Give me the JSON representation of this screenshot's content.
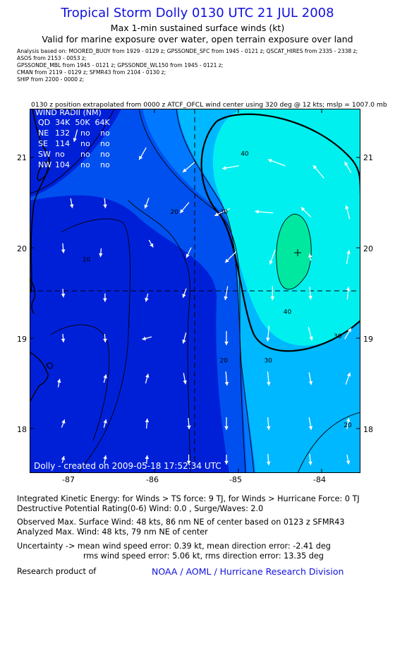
{
  "header": {
    "title": "Tropical Storm Dolly 0130 UTC 21 JUL 2008",
    "subtitle1": "Max 1-min sustained surface winds (kt)",
    "subtitle2": "Valid for marine exposure over water, open terrain exposure over land"
  },
  "analysis_lines": [
    "Analysis based on:  MOORED_BUOY from 1929 - 0129 z;  GPSSONDE_SFC from 1945 - 0121 z;  QSCAT_HIRES from 2335 - 2338 z;",
    "ASOS from 2153 - 0053 z;",
    "GPSSONDE_MBL from 1945 - 0121 z;  GPSSONDE_WL150 from 1945 - 0121 z;",
    "CMAN from 2119 - 0129 z;  SFMR43 from 2104 - 0130 z;",
    "SHIP from 2200 - 0000 z;"
  ],
  "position_note": "0130 z position extrapolated from 0000 z ATCF_OFCL wind center using 320 deg @ 12 kts; mslp = 1007.0 mb",
  "wind_radii": {
    "title": "WIND RADII (NM)",
    "header": "QD  34K  50K  64K",
    "rows": [
      {
        "quad": "NE",
        "r34": "132",
        "r50": "no",
        "r64": "no"
      },
      {
        "quad": "SE",
        "r34": "114",
        "r50": "no",
        "r64": "no"
      },
      {
        "quad": "SW",
        "r34": "no",
        "r50": "no",
        "r64": "no"
      },
      {
        "quad": "NW",
        "r34": "104",
        "r50": "no",
        "r64": "no"
      }
    ]
  },
  "credit": "Dolly - created on 2009-05-18 17:52:34 UTC",
  "footer": {
    "ike": "Integrated Kinetic Energy:  for Winds > TS force: 9 TJ,  for Winds > Hurricane Force: 0 TJ",
    "dpr": "Destructive Potential Rating(0-6)   Wind: 0.0 , Surge/Waves: 2.0",
    "observed": "Observed Max. Surface Wind: 48 kts, 86 nm NE of center based on 0123 z SFMR43",
    "analyzed": "Analyzed Max. Wind: 48 kts, 79 nm NE of center",
    "uncert1": "Uncertainty -> mean wind speed error: 0.39 kt,   mean direction error:  -2.41 deg",
    "uncert2": "rms wind speed error: 5.06 kt,   rms direction error: 13.35 deg",
    "research": "Research product of",
    "org": "NOAA / AOML / Hurricane Research Division"
  },
  "chart_data": {
    "type": "heatmap",
    "xlim": [
      -87.5,
      -83.55
    ],
    "ylim": [
      17.5,
      21.55
    ],
    "x_ticks": [
      -87,
      -86,
      -85,
      -84
    ],
    "x_tick_labels": [
      "-87",
      "-86",
      "-85",
      "-84"
    ],
    "y_ticks": [
      18,
      19,
      20,
      21
    ],
    "y_tick_labels": [
      "18",
      "19",
      "20",
      "21"
    ],
    "storm_center": {
      "lon": -84.3,
      "lat": 19.95
    },
    "position_lines": {
      "lon": -86.5,
      "lat": 19.55
    },
    "color_scale": [
      "#0020d8",
      "#0050f0",
      "#0078ff",
      "#00b8ff",
      "#00f0f0",
      "#00e8a0"
    ],
    "contour_labels": [
      {
        "text": "40",
        "lon": -84.98,
        "lat": 21.03
      },
      {
        "text": "30",
        "lon": -85.23,
        "lat": 20.38
      },
      {
        "text": "20",
        "lon": -85.82,
        "lat": 20.38
      },
      {
        "text": "10",
        "lon": -86.87,
        "lat": 19.85
      },
      {
        "text": "40",
        "lon": -84.47,
        "lat": 19.27
      },
      {
        "text": "30",
        "lon": -84.7,
        "lat": 18.73
      },
      {
        "text": "20",
        "lon": -85.23,
        "lat": 18.73
      },
      {
        "text": "20",
        "lon": -83.75,
        "lat": 18.01
      },
      {
        "text": "30",
        "lon": -83.87,
        "lat": 19.0
      }
    ],
    "wind_vectors": [
      {
        "lon": -86.95,
        "lat": 21.25,
        "dir": 195,
        "len": 0.9
      },
      {
        "lon": -86.15,
        "lat": 21.05,
        "dir": 210,
        "len": 1.0
      },
      {
        "lon": -85.6,
        "lat": 20.9,
        "dir": 230,
        "len": 1.1
      },
      {
        "lon": -85.1,
        "lat": 20.9,
        "dir": 260,
        "len": 1.2
      },
      {
        "lon": -84.55,
        "lat": 20.95,
        "dir": 290,
        "len": 1.3
      },
      {
        "lon": -84.05,
        "lat": 20.85,
        "dir": 320,
        "len": 1.2
      },
      {
        "lon": -83.7,
        "lat": 20.9,
        "dir": 330,
        "len": 0.9
      },
      {
        "lon": -87.0,
        "lat": 20.5,
        "dir": 170,
        "len": 0.7
      },
      {
        "lon": -86.6,
        "lat": 20.5,
        "dir": 175,
        "len": 0.7
      },
      {
        "lon": -86.1,
        "lat": 20.5,
        "dir": 200,
        "len": 0.8
      },
      {
        "lon": -85.65,
        "lat": 20.45,
        "dir": 220,
        "len": 1.0
      },
      {
        "lon": -85.2,
        "lat": 20.4,
        "dir": 245,
        "len": 1.2
      },
      {
        "lon": -84.7,
        "lat": 20.4,
        "dir": 275,
        "len": 1.3
      },
      {
        "lon": -84.2,
        "lat": 20.4,
        "dir": 315,
        "len": 1.0
      },
      {
        "lon": -83.7,
        "lat": 20.4,
        "dir": 345,
        "len": 1.0
      },
      {
        "lon": -87.1,
        "lat": 20.0,
        "dir": 175,
        "len": 0.7
      },
      {
        "lon": -86.65,
        "lat": 19.95,
        "dir": 185,
        "len": 0.6
      },
      {
        "lon": -86.05,
        "lat": 20.05,
        "dir": 150,
        "len": 0.6
      },
      {
        "lon": -85.6,
        "lat": 19.95,
        "dir": 205,
        "len": 0.8
      },
      {
        "lon": -85.1,
        "lat": 19.9,
        "dir": 225,
        "len": 1.1
      },
      {
        "lon": -84.6,
        "lat": 19.9,
        "dir": 200,
        "len": 1.1
      },
      {
        "lon": -84.15,
        "lat": 19.9,
        "dir": 350,
        "len": 0.5
      },
      {
        "lon": -83.7,
        "lat": 19.9,
        "dir": 10,
        "len": 1.0
      },
      {
        "lon": -87.1,
        "lat": 19.5,
        "dir": 175,
        "len": 0.6
      },
      {
        "lon": -86.6,
        "lat": 19.45,
        "dir": 180,
        "len": 0.6
      },
      {
        "lon": -86.1,
        "lat": 19.45,
        "dir": 195,
        "len": 0.6
      },
      {
        "lon": -85.65,
        "lat": 19.5,
        "dir": 200,
        "len": 0.7
      },
      {
        "lon": -85.15,
        "lat": 19.5,
        "dir": 190,
        "len": 1.0
      },
      {
        "lon": -84.6,
        "lat": 19.5,
        "dir": 180,
        "len": 1.0
      },
      {
        "lon": -84.15,
        "lat": 19.5,
        "dir": 175,
        "len": 0.9
      },
      {
        "lon": -83.7,
        "lat": 19.5,
        "dir": 5,
        "len": 0.9
      },
      {
        "lon": -87.1,
        "lat": 19.0,
        "dir": 175,
        "len": 0.6
      },
      {
        "lon": -86.6,
        "lat": 19.0,
        "dir": 175,
        "len": 0.6
      },
      {
        "lon": -86.1,
        "lat": 19.0,
        "dir": 255,
        "len": 0.7
      },
      {
        "lon": -85.65,
        "lat": 19.0,
        "dir": 195,
        "len": 0.8
      },
      {
        "lon": -85.15,
        "lat": 19.0,
        "dir": 180,
        "len": 1.0
      },
      {
        "lon": -84.65,
        "lat": 19.05,
        "dir": 185,
        "len": 1.1
      },
      {
        "lon": -84.15,
        "lat": 19.05,
        "dir": 165,
        "len": 1.0
      },
      {
        "lon": -83.7,
        "lat": 19.05,
        "dir": 30,
        "len": 0.9
      },
      {
        "lon": -87.15,
        "lat": 18.5,
        "dir": 10,
        "len": 0.6
      },
      {
        "lon": -86.6,
        "lat": 18.55,
        "dir": 15,
        "len": 0.6
      },
      {
        "lon": -86.1,
        "lat": 18.55,
        "dir": 15,
        "len": 0.7
      },
      {
        "lon": -85.65,
        "lat": 18.55,
        "dir": 170,
        "len": 0.8
      },
      {
        "lon": -85.15,
        "lat": 18.55,
        "dir": 175,
        "len": 1.0
      },
      {
        "lon": -84.65,
        "lat": 18.55,
        "dir": 175,
        "len": 1.0
      },
      {
        "lon": -84.15,
        "lat": 18.55,
        "dir": 170,
        "len": 0.9
      },
      {
        "lon": -83.7,
        "lat": 18.55,
        "dir": 20,
        "len": 0.9
      },
      {
        "lon": -87.1,
        "lat": 18.05,
        "dir": 20,
        "len": 0.6
      },
      {
        "lon": -86.6,
        "lat": 18.05,
        "dir": 15,
        "len": 0.6
      },
      {
        "lon": -86.1,
        "lat": 18.05,
        "dir": 5,
        "len": 0.7
      },
      {
        "lon": -85.6,
        "lat": 18.05,
        "dir": 175,
        "len": 0.8
      },
      {
        "lon": -85.15,
        "lat": 18.05,
        "dir": 180,
        "len": 0.9
      },
      {
        "lon": -84.65,
        "lat": 18.05,
        "dir": 175,
        "len": 0.9
      },
      {
        "lon": -84.15,
        "lat": 18.05,
        "dir": 170,
        "len": 0.9
      },
      {
        "lon": -83.7,
        "lat": 18.05,
        "dir": 10,
        "len": 0.8
      },
      {
        "lon": -87.1,
        "lat": 17.65,
        "dir": 15,
        "len": 0.5
      },
      {
        "lon": -86.6,
        "lat": 17.65,
        "dir": 10,
        "len": 0.6
      },
      {
        "lon": -86.1,
        "lat": 17.65,
        "dir": 5,
        "len": 0.6
      },
      {
        "lon": -85.6,
        "lat": 17.65,
        "dir": 180,
        "len": 0.7
      },
      {
        "lon": -85.15,
        "lat": 17.65,
        "dir": 180,
        "len": 0.7
      },
      {
        "lon": -84.65,
        "lat": 17.65,
        "dir": 175,
        "len": 0.8
      },
      {
        "lon": -84.15,
        "lat": 17.65,
        "dir": 175,
        "len": 0.8
      },
      {
        "lon": -83.7,
        "lat": 17.65,
        "dir": 170,
        "len": 0.7
      }
    ]
  }
}
